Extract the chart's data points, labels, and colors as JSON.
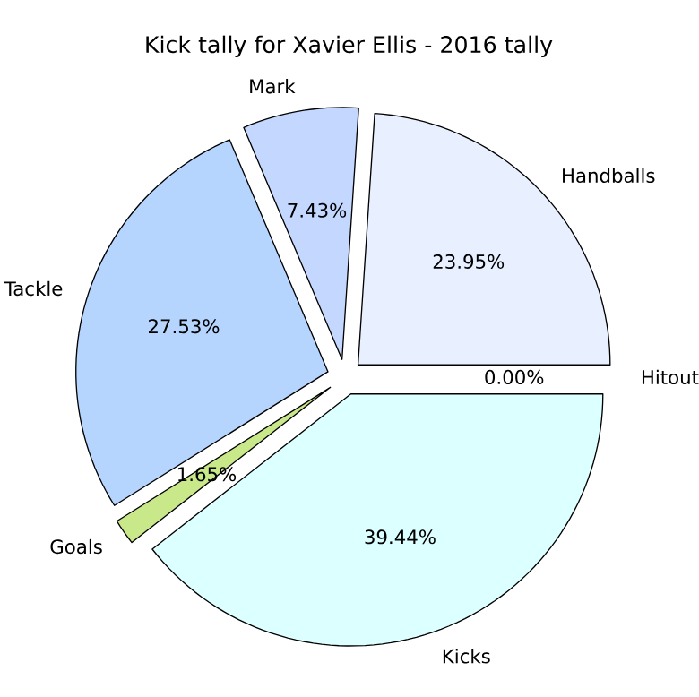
{
  "chart_data": {
    "type": "pie",
    "title": "Kick tally for Xavier Ellis - 2016 tally",
    "categories": [
      "Handballs",
      "Mark",
      "Tackle",
      "Goals",
      "Kicks",
      "Hitout"
    ],
    "values": [
      23.95,
      7.43,
      27.53,
      1.65,
      39.44,
      0.0
    ],
    "colors": [
      "#e8f0ff",
      "#c4d8ff",
      "#b5d5ff",
      "#c8e88a",
      "#dcffff",
      "#ffffff"
    ],
    "value_labels": [
      "23.95%",
      "7.43%",
      "27.53%",
      "1.65%",
      "39.44%",
      "0.00%"
    ]
  }
}
